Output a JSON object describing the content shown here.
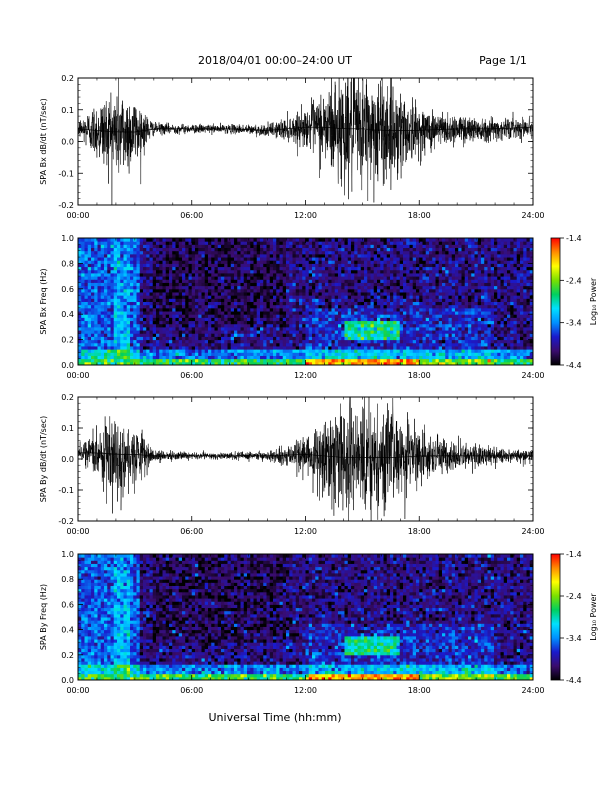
{
  "header": {
    "title": "2018/04/01   00:00–24:00 UT",
    "page": "Page 1/1"
  },
  "footer": {
    "xlabel": "Universal Time (hh:mm)"
  },
  "colors": {
    "trace": "#000000",
    "colorbar": [
      "#000000",
      "#3a0c6e",
      "#1a1acc",
      "#0090ff",
      "#00e0ff",
      "#00d060",
      "#7ae000",
      "#ffff00",
      "#ff8c00",
      "#ff0000"
    ]
  },
  "colorbar": {
    "label": "Log₁₀ Power",
    "ticks": [
      "-1.4",
      "-2.4",
      "-3.4",
      "-4.4"
    ]
  },
  "chart_data": [
    {
      "type": "line",
      "title": "",
      "ylabel": "SPA Bx dB/dt (nT/sec)",
      "xlabel": "",
      "xlim": [
        0,
        24
      ],
      "ylim": [
        -0.2,
        0.2
      ],
      "xticks": [
        "00:00",
        "06:00",
        "12:00",
        "18:00",
        "24:00"
      ],
      "yticks": [
        "0.2",
        "0.1",
        "0.0",
        "-0.1",
        "-0.2"
      ],
      "x": [
        0,
        1,
        2,
        3,
        4,
        6,
        8,
        10,
        12,
        13,
        14,
        15,
        16,
        17,
        18,
        20,
        22,
        24
      ],
      "series": [
        {
          "values": [
            0.04,
            0.035,
            0.03,
            0.03,
            0.04,
            0.04,
            0.04,
            0.035,
            0.045,
            0.045,
            0.04,
            0.04,
            0.035,
            0.035,
            0.035,
            0.04,
            0.04,
            0.045
          ]
        }
      ],
      "amplitude_envelope": [
        0.03,
        0.1,
        0.17,
        0.12,
        0.02,
        0.015,
        0.015,
        0.02,
        0.06,
        0.14,
        0.2,
        0.2,
        0.19,
        0.15,
        0.08,
        0.05,
        0.04,
        0.03
      ]
    },
    {
      "type": "heatmap",
      "title": "",
      "ylabel": "SPA Bx Freq (Hz)",
      "xlabel": "",
      "xlim": [
        0,
        24
      ],
      "ylim": [
        0.0,
        1.0
      ],
      "xticks": [
        "00:00",
        "06:00",
        "12:00",
        "18:00",
        "24:00"
      ],
      "yticks": [
        "1.0",
        "0.8",
        "0.6",
        "0.4",
        "0.2",
        "0.0"
      ],
      "zlim": [
        -4.4,
        -1.4
      ],
      "zlabel": "Log₁₀ Power",
      "features": {
        "low_freq_band_level": -3.0,
        "background_level": -4.0,
        "storm_band_freq": [
          0.2,
          0.35
        ],
        "storm_band_time": [
          14,
          17
        ]
      }
    },
    {
      "type": "line",
      "title": "",
      "ylabel": "SPA By dB/dt (nT/sec)",
      "xlabel": "",
      "xlim": [
        0,
        24
      ],
      "ylim": [
        -0.2,
        0.2
      ],
      "xticks": [
        "00:00",
        "06:00",
        "12:00",
        "18:00",
        "24:00"
      ],
      "yticks": [
        "0.2",
        "0.1",
        "0.0",
        "-0.1",
        "-0.2"
      ],
      "x": [
        0,
        1,
        2,
        3,
        4,
        6,
        8,
        10,
        12,
        13,
        14,
        15,
        16,
        17,
        18,
        20,
        22,
        24
      ],
      "series": [
        {
          "values": [
            0.02,
            0.02,
            0.015,
            0.015,
            0.01,
            0.01,
            0.01,
            0.01,
            0.015,
            0.01,
            0.005,
            0.005,
            0.005,
            0.005,
            0.01,
            0.01,
            0.01,
            0.01
          ]
        }
      ],
      "amplitude_envelope": [
        0.02,
        0.08,
        0.16,
        0.1,
        0.02,
        0.012,
        0.012,
        0.015,
        0.06,
        0.16,
        0.2,
        0.2,
        0.18,
        0.14,
        0.08,
        0.05,
        0.03,
        0.02
      ]
    },
    {
      "type": "heatmap",
      "title": "",
      "ylabel": "SPA By Freq (Hz)",
      "xlabel": "Universal Time (hh:mm)",
      "xlim": [
        0,
        24
      ],
      "ylim": [
        0.0,
        1.0
      ],
      "xticks": [
        "00:00",
        "06:00",
        "12:00",
        "18:00",
        "24:00"
      ],
      "yticks": [
        "1.0",
        "0.8",
        "0.6",
        "0.4",
        "0.2",
        "0.0"
      ],
      "zlim": [
        -4.4,
        -1.4
      ],
      "zlabel": "Log₁₀ Power",
      "features": {
        "low_freq_band_level": -3.0,
        "background_level": -4.0,
        "storm_band_freq": [
          0.2,
          0.35
        ],
        "storm_band_time": [
          14,
          17
        ]
      }
    }
  ]
}
